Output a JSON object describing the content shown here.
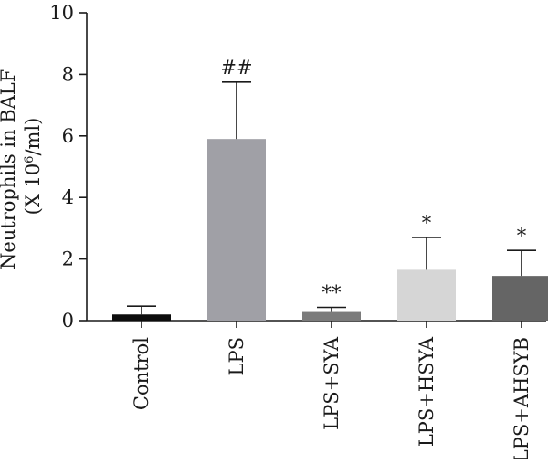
{
  "chart_data": {
    "type": "bar",
    "title": "",
    "xlabel": "",
    "ylabel_line1": "Neutrophils in BALF",
    "ylabel_line2_prefix": "(X 10",
    "ylabel_line2_sup": "6",
    "ylabel_line2_suffix": "/ml)",
    "ylim": [
      0,
      10
    ],
    "yticks": [
      0,
      2,
      4,
      6,
      8,
      10
    ],
    "yticks_labels": [
      "0",
      "2",
      "4",
      "6",
      "8",
      "10"
    ],
    "categories": [
      "Control",
      "LPS",
      "LPS+SYA",
      "LPS+HSYA",
      "LPS+AHSYB"
    ],
    "values": [
      0.2,
      5.9,
      0.28,
      1.65,
      1.45
    ],
    "errors": [
      0.27,
      1.85,
      0.15,
      1.05,
      0.83
    ],
    "annotations": [
      "",
      "##",
      "**",
      "*",
      "*"
    ],
    "colors": [
      "#0d0d0d",
      "#a0a0a6",
      "#7b7b7b",
      "#d6d6d6",
      "#656565"
    ],
    "grid": false,
    "legend": "none"
  }
}
